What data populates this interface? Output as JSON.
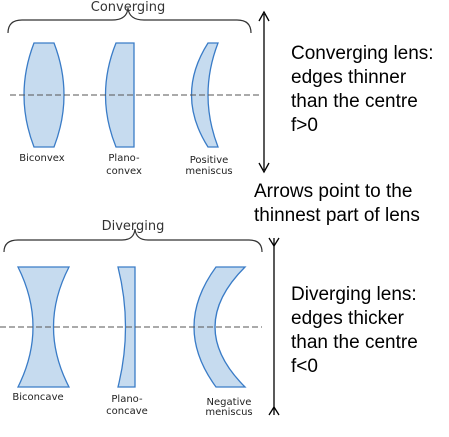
{
  "converging": {
    "title": "Converging",
    "lenses": [
      {
        "line1": "Biconvex",
        "line2": ""
      },
      {
        "line1": "Plano-",
        "line2": "convex"
      },
      {
        "line1": "Positive",
        "line2": "meniscus"
      }
    ],
    "note": [
      "Converging lens:",
      "edges thinner",
      "than the centre",
      "f>0"
    ]
  },
  "diverging": {
    "title": "Diverging",
    "lenses": [
      {
        "line1": "Biconcave",
        "line2": ""
      },
      {
        "line1": "Plano-",
        "line2": "concave"
      },
      {
        "line1": "Negative",
        "line2": "meniscus"
      }
    ],
    "note": [
      "Diverging lens:",
      "edges thicker",
      "than the centre",
      "f<0"
    ]
  },
  "arrows_note": [
    "Arrows point to the",
    "thinnest part of lens"
  ],
  "colors": {
    "lens_fill": "#c6dbef",
    "lens_stroke": "#3a7cc7"
  }
}
